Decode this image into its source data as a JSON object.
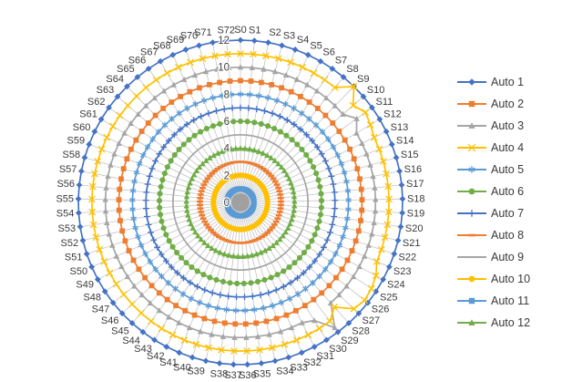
{
  "figure": {
    "background": "#FFFFFF",
    "title": ""
  },
  "chart_data": {
    "type": "radar",
    "title": "",
    "xlabel": "",
    "ylabel": "",
    "grid": "radial-spokes-only",
    "legend_position": "right",
    "categories": [
      "S0",
      "S1",
      "S2",
      "S3",
      "S4",
      "S5",
      "S6",
      "S7",
      "S8",
      "S9",
      "S10",
      "S11",
      "S12",
      "S13",
      "S14",
      "S15",
      "S16",
      "S17",
      "S18",
      "S19",
      "S20",
      "S21",
      "S22",
      "S23",
      "S24",
      "S25",
      "S26",
      "S27",
      "S28",
      "S29",
      "S30",
      "S31",
      "S32",
      "S33",
      "S34",
      "S35",
      "S36",
      "S37",
      "S38",
      "S39",
      "S40",
      "S41",
      "S42",
      "S43",
      "S44",
      "S45",
      "S46",
      "S47",
      "S48",
      "S49",
      "S50",
      "S51",
      "S52",
      "S53",
      "S54",
      "S55",
      "S56",
      "S57",
      "S58",
      "S59",
      "S60",
      "S61",
      "S62",
      "S63",
      "S64",
      "S65",
      "S66",
      "S67",
      "S68",
      "S69",
      "S70",
      "S71",
      "S72"
    ],
    "axis": {
      "min": 0,
      "max": 12,
      "tick_step": 2,
      "tick_labels": [
        "0",
        "2",
        "4",
        "6",
        "8",
        "10",
        "12"
      ]
    },
    "spoke_color": "#c4c4c4",
    "center_hub_color": "#a0a0a0",
    "series": [
      {
        "name": "Auto 1",
        "color": "#4472C4",
        "marker": "diamond",
        "base_value": 12,
        "anomalies": {}
      },
      {
        "name": "Auto 2",
        "color": "#ED7D31",
        "marker": "square",
        "base_value": 9,
        "anomalies": {}
      },
      {
        "name": "Auto 3",
        "color": "#A5A5A5",
        "marker": "triangle",
        "base_value": 10,
        "anomalies": {
          "11": 10.6,
          "29": 11.6,
          "30": 10.3
        }
      },
      {
        "name": "Auto 4",
        "color": "#FFC000",
        "marker": "x",
        "base_value": 11,
        "anomalies": {
          "9": 12,
          "11": 11.4,
          "12": 11.2,
          "24": 11.4,
          "25": 11.6,
          "26": 11.7,
          "27": 11.5,
          "28": 10.4
        }
      },
      {
        "name": "Auto 5",
        "color": "#5B9BD5",
        "marker": "asterisk",
        "base_value": 8,
        "anomalies": {}
      },
      {
        "name": "Auto 6",
        "color": "#70AD47",
        "marker": "circle",
        "base_value": 6,
        "anomalies": {}
      },
      {
        "name": "Auto 7",
        "color": "#4472C4",
        "marker": "plus",
        "base_value": 7,
        "anomalies": {}
      },
      {
        "name": "Auto 8",
        "color": "#ED7D31",
        "marker": "dash",
        "base_value": 3,
        "anomalies": {}
      },
      {
        "name": "Auto 9",
        "color": "#A5A5A5",
        "marker": "none",
        "base_value": 5,
        "anomalies": {}
      },
      {
        "name": "Auto 10",
        "color": "#FFC000",
        "marker": "circle",
        "base_value": 2,
        "anomalies": {}
      },
      {
        "name": "Auto 11",
        "color": "#5B9BD5",
        "marker": "square",
        "base_value": 1,
        "anomalies": {}
      },
      {
        "name": "Auto 12",
        "color": "#70AD47",
        "marker": "triangle",
        "base_value": 4,
        "anomalies": {}
      }
    ]
  }
}
